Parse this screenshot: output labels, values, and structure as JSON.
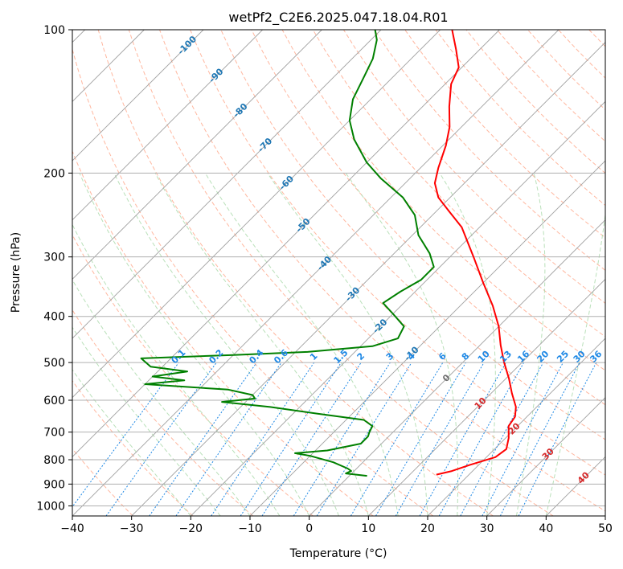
{
  "chart_data": {
    "type": "line",
    "title": "wetPf2_C2E6.2025.047.18.04.R01",
    "xlabel": "Temperature (°C)",
    "ylabel": "Pressure (hPa)",
    "xlim": [
      -40,
      50
    ],
    "ylim": [
      1050,
      100
    ],
    "y_scale": "log",
    "skew": "skew-T",
    "grid": true,
    "x_ticks": [
      -40,
      -30,
      -20,
      -10,
      0,
      10,
      20,
      30,
      40,
      50
    ],
    "y_ticks": [
      100,
      200,
      300,
      400,
      500,
      600,
      700,
      800,
      900,
      1000
    ],
    "colors": {
      "temperature": "#ff0000",
      "dewpoint": "#008000",
      "isotherms": "#a0a0a0",
      "dry_adiabats": "#ff9f7f",
      "moist_adiabats": "#a8d8a8",
      "mixing_ratio": "#1e88e5",
      "isotherm_labels": "#1f77b4",
      "adiabat_labels": "#d62728"
    },
    "series": [
      {
        "role": "temperature",
        "points": [
          {
            "p": 860,
            "t": 14.5
          },
          {
            "p": 845,
            "t": 16.5
          },
          {
            "p": 820,
            "t": 18.5
          },
          {
            "p": 790,
            "t": 21.5
          },
          {
            "p": 760,
            "t": 22.0
          },
          {
            "p": 720,
            "t": 20.5
          },
          {
            "p": 680,
            "t": 18.5
          },
          {
            "p": 650,
            "t": 18.0
          },
          {
            "p": 620,
            "t": 16.5
          },
          {
            "p": 580,
            "t": 13.5
          },
          {
            "p": 540,
            "t": 10.5
          },
          {
            "p": 500,
            "t": 7.0
          },
          {
            "p": 460,
            "t": 3.5
          },
          {
            "p": 420,
            "t": 0.0
          },
          {
            "p": 380,
            "t": -4.5
          },
          {
            "p": 340,
            "t": -10.0
          },
          {
            "p": 300,
            "t": -16.0
          },
          {
            "p": 260,
            "t": -23.0
          },
          {
            "p": 240,
            "t": -28.0
          },
          {
            "p": 225,
            "t": -32.0
          },
          {
            "p": 210,
            "t": -35.0
          },
          {
            "p": 195,
            "t": -37.0
          },
          {
            "p": 175,
            "t": -39.5
          },
          {
            "p": 160,
            "t": -42.0
          },
          {
            "p": 145,
            "t": -45.5
          },
          {
            "p": 130,
            "t": -49.0
          },
          {
            "p": 120,
            "t": -50.5
          },
          {
            "p": 110,
            "t": -54.0
          },
          {
            "p": 100,
            "t": -58.0
          }
        ]
      },
      {
        "role": "dewpoint",
        "points": [
          {
            "p": 865,
            "t": 3.0
          },
          {
            "p": 855,
            "t": -1.0
          },
          {
            "p": 845,
            "t": -0.5
          },
          {
            "p": 835,
            "t": -1.5
          },
          {
            "p": 810,
            "t": -5.0
          },
          {
            "p": 785,
            "t": -10.0
          },
          {
            "p": 775,
            "t": -13.0
          },
          {
            "p": 765,
            "t": -8.0
          },
          {
            "p": 740,
            "t": -3.5
          },
          {
            "p": 715,
            "t": -3.5
          },
          {
            "p": 700,
            "t": -4.0
          },
          {
            "p": 680,
            "t": -4.5
          },
          {
            "p": 660,
            "t": -7.0
          },
          {
            "p": 640,
            "t": -16.0
          },
          {
            "p": 620,
            "t": -25.0
          },
          {
            "p": 605,
            "t": -34.0
          },
          {
            "p": 595,
            "t": -29.0
          },
          {
            "p": 585,
            "t": -30.0
          },
          {
            "p": 570,
            "t": -35.0
          },
          {
            "p": 555,
            "t": -50.0
          },
          {
            "p": 545,
            "t": -44.0
          },
          {
            "p": 535,
            "t": -50.0
          },
          {
            "p": 522,
            "t": -45.0
          },
          {
            "p": 510,
            "t": -52.0
          },
          {
            "p": 490,
            "t": -55.0
          },
          {
            "p": 482,
            "t": -40.0
          },
          {
            "p": 475,
            "t": -28.0
          },
          {
            "p": 462,
            "t": -18.0
          },
          {
            "p": 445,
            "t": -15.0
          },
          {
            "p": 420,
            "t": -16.0
          },
          {
            "p": 395,
            "t": -20.0
          },
          {
            "p": 375,
            "t": -23.5
          },
          {
            "p": 355,
            "t": -22.5
          },
          {
            "p": 335,
            "t": -21.0
          },
          {
            "p": 315,
            "t": -21.0
          },
          {
            "p": 295,
            "t": -24.0
          },
          {
            "p": 270,
            "t": -29.0
          },
          {
            "p": 245,
            "t": -33.0
          },
          {
            "p": 225,
            "t": -38.0
          },
          {
            "p": 205,
            "t": -45.0
          },
          {
            "p": 190,
            "t": -50.0
          },
          {
            "p": 170,
            "t": -56.0
          },
          {
            "p": 155,
            "t": -60.0
          },
          {
            "p": 140,
            "t": -63.0
          },
          {
            "p": 125,
            "t": -65.0
          },
          {
            "p": 115,
            "t": -66.5
          },
          {
            "p": 105,
            "t": -69.0
          },
          {
            "p": 100,
            "t": -71.0
          }
        ]
      }
    ],
    "isotherm_labels": [
      "-100",
      "-90",
      "-80",
      "-70",
      "-60",
      "-50",
      "-40",
      "-30",
      "-20",
      "-10"
    ],
    "isotherm_label_values": [
      -100,
      -90,
      -80,
      -70,
      -60,
      -50,
      -40,
      -30,
      -20,
      -10
    ],
    "mixing_ratio_labels": [
      "0.1",
      "0.2",
      "0.4",
      "0.6",
      "1",
      "1.5",
      "2",
      "3",
      "4",
      "6",
      "8",
      "10",
      "13",
      "16",
      "20",
      "25",
      "30",
      "36"
    ],
    "mixing_ratio_values": [
      0.1,
      0.2,
      0.4,
      0.6,
      1,
      1.5,
      2,
      3,
      4,
      6,
      8,
      10,
      13,
      16,
      20,
      25,
      30,
      36
    ],
    "dry_adiabat_labels": [
      "0",
      "10",
      "20",
      "30",
      "40"
    ],
    "dry_adiabat_label_values": [
      0,
      10,
      20,
      30,
      40
    ]
  }
}
